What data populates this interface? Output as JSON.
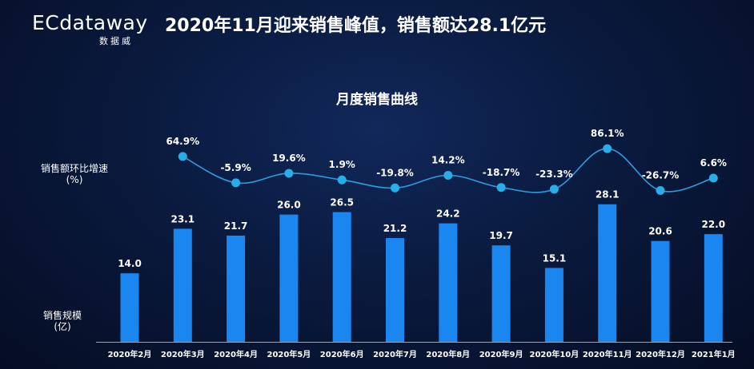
{
  "logo": {
    "main": "ECdataway",
    "sub": "数据威"
  },
  "headline": "2020年11月迎来销售峰值，销售额达28.1亿元",
  "colors": {
    "bar": "#1a86f0",
    "line": "#2a9ee0",
    "dot": "#27aee8",
    "background": "#0a1a3e"
  },
  "chart_data": {
    "type": "bar",
    "title": "月度销售曲线",
    "categories": [
      "2020年2月",
      "2020年3月",
      "2020年4月",
      "2020年5月",
      "2020年6月",
      "2020年7月",
      "2020年8月",
      "2020年9月",
      "2020年10月",
      "2020年11月",
      "2020年12月",
      "2021年1月"
    ],
    "series": [
      {
        "name": "销售规模",
        "unit": "亿",
        "values": [
          14.0,
          23.1,
          21.7,
          26.0,
          26.5,
          21.2,
          24.2,
          19.7,
          15.1,
          28.1,
          20.6,
          22.0
        ]
      },
      {
        "name": "销售额环比增速",
        "unit": "%",
        "type": "line",
        "values": [
          null,
          64.9,
          -5.9,
          19.6,
          1.9,
          -19.8,
          14.2,
          -18.7,
          -23.3,
          86.1,
          -26.7,
          6.6
        ]
      }
    ],
    "bar_axis_label": [
      "销售规模",
      "(亿)"
    ],
    "line_axis_label": [
      "销售额环比增速",
      "(%)"
    ]
  }
}
